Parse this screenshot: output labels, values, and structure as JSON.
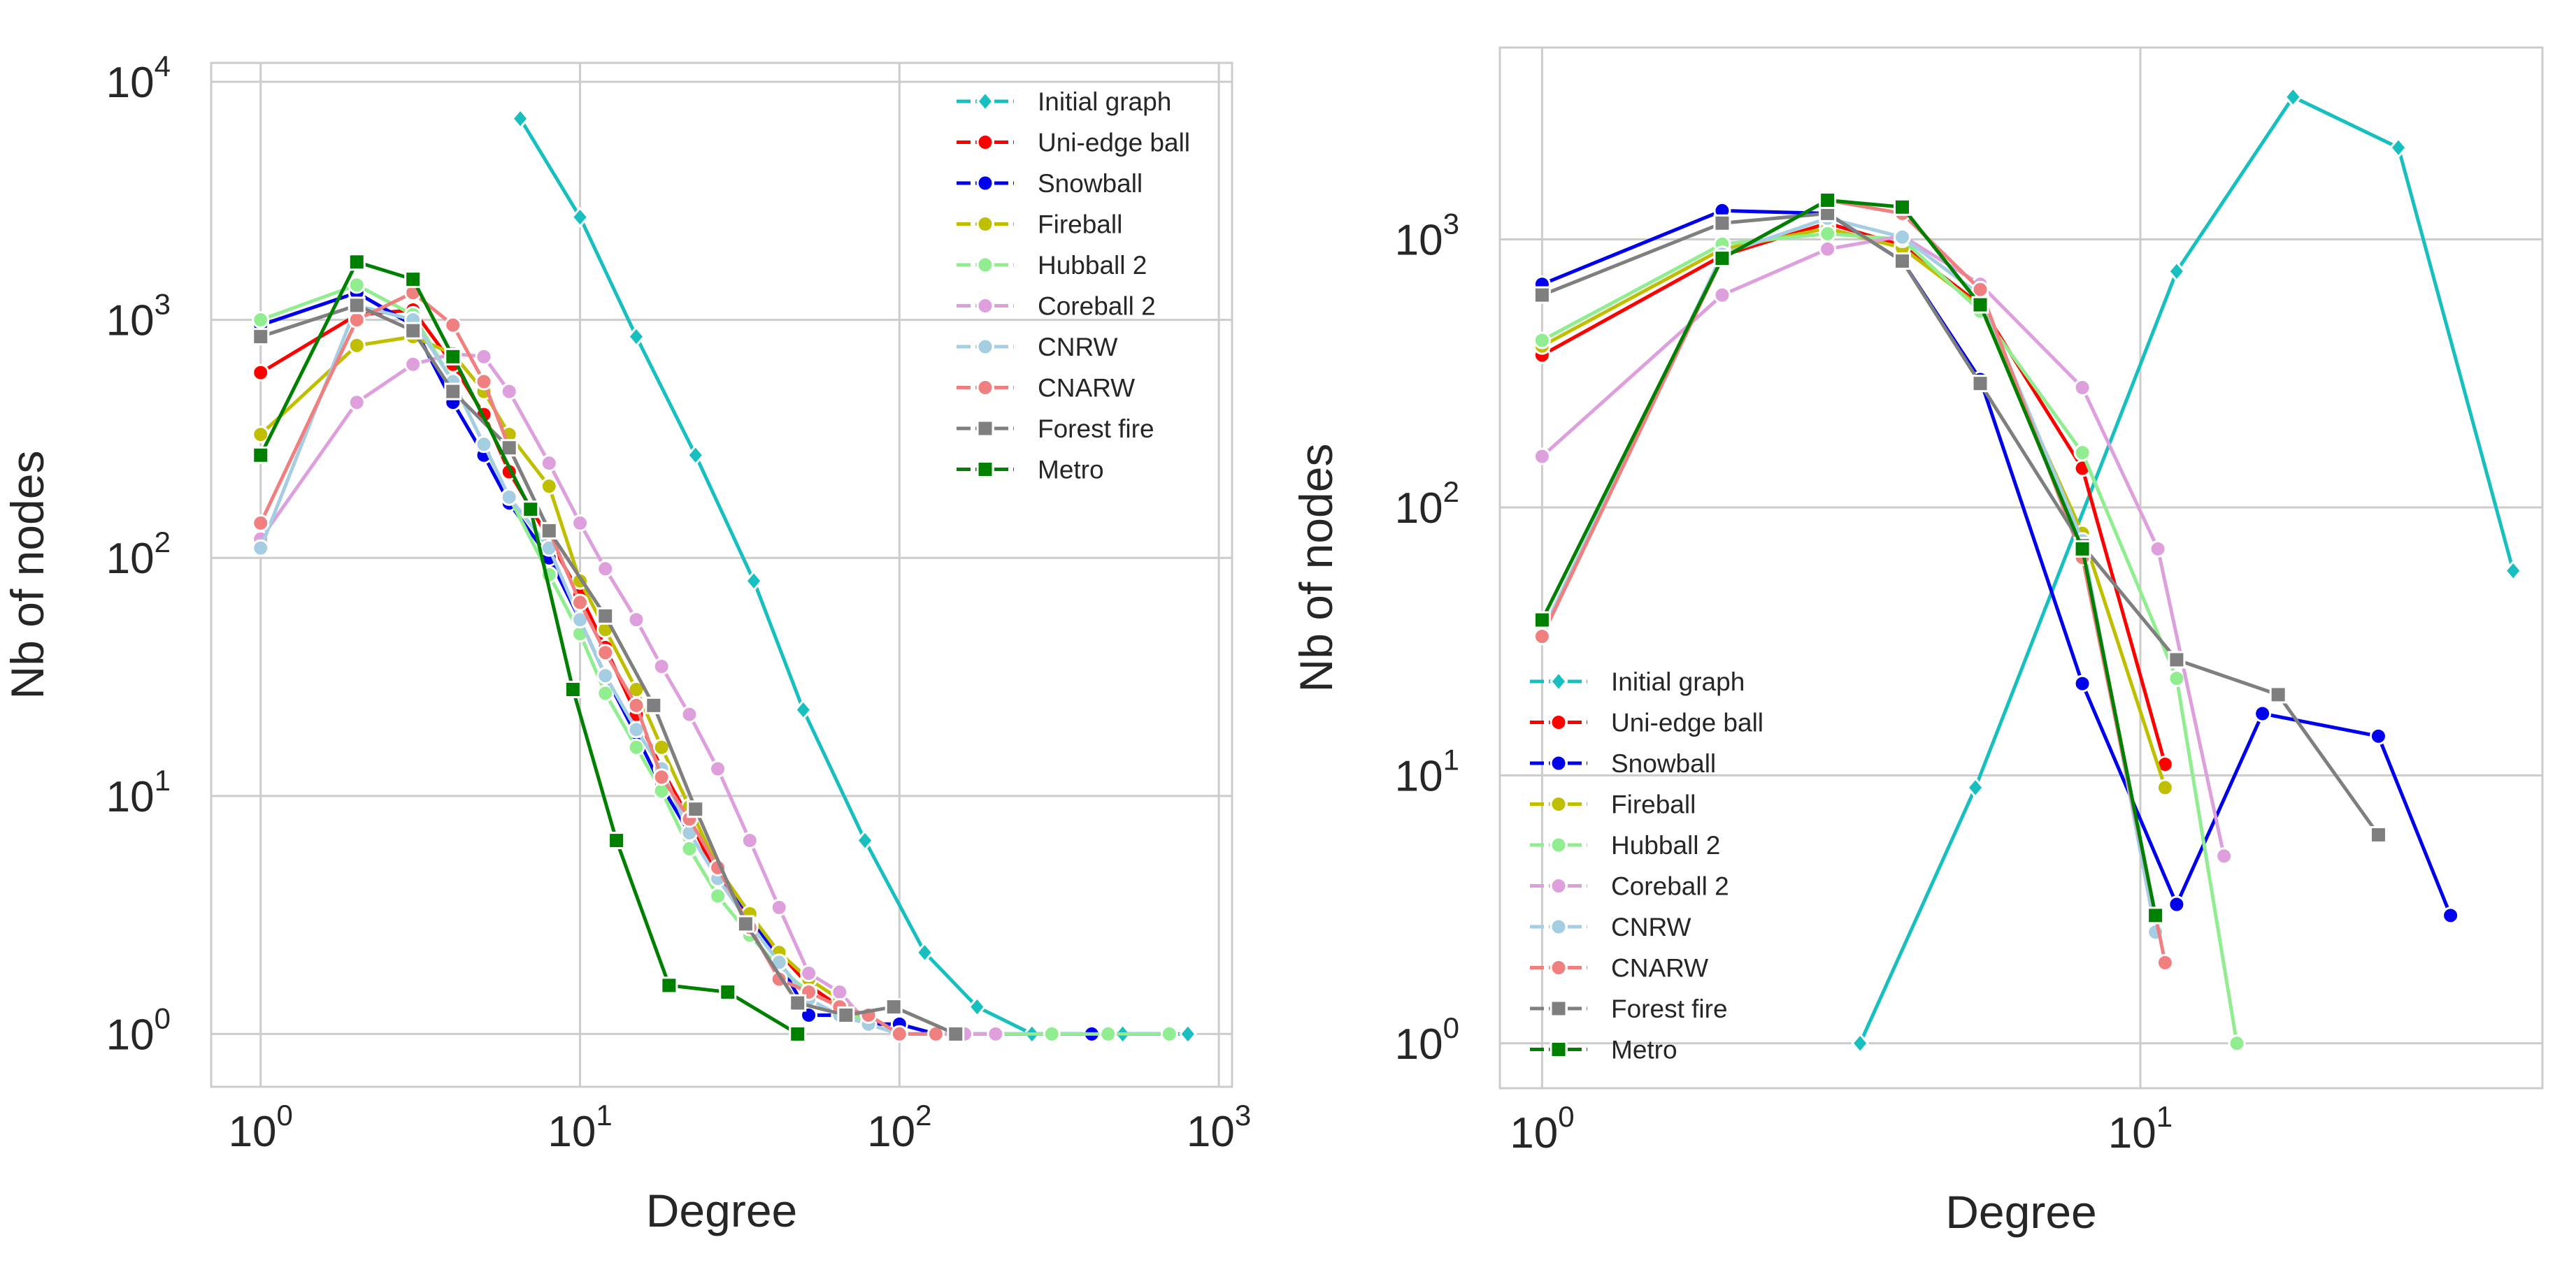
{
  "chart_data": [
    {
      "type": "line",
      "xscale": "log",
      "yscale": "log",
      "xlabel": "Degree",
      "ylabel": "Nb of nodes",
      "xlim": [
        0.7,
        1100
      ],
      "ylim": [
        0.6,
        12000
      ],
      "xticks": [
        {
          "base": "10",
          "exp": "0",
          "value": 1
        },
        {
          "base": "10",
          "exp": "1",
          "value": 10
        },
        {
          "base": "10",
          "exp": "2",
          "value": 100
        },
        {
          "base": "10",
          "exp": "3",
          "value": 1000
        }
      ],
      "yticks": [
        {
          "base": "10",
          "exp": "0",
          "value": 1
        },
        {
          "base": "10",
          "exp": "1",
          "value": 10
        },
        {
          "base": "10",
          "exp": "2",
          "value": 100
        },
        {
          "base": "10",
          "exp": "3",
          "value": 1000
        },
        {
          "base": "10",
          "exp": "4",
          "value": 10000
        }
      ],
      "grid": true,
      "legend_position": "top-right",
      "series": [
        {
          "name": "Initial graph",
          "color": "#17bfbf",
          "marker": "diamond",
          "x": [
            6.5,
            10,
            15,
            23,
            35,
            50,
            78,
            120,
            175,
            260,
            400,
            500,
            800
          ],
          "y": [
            7000,
            2700,
            850,
            270,
            80,
            23,
            6.5,
            2.2,
            1.3,
            1.0,
            1.0,
            1.0,
            1.0
          ]
        },
        {
          "name": "Uni-edge ball",
          "color": "#ff0000",
          "marker": "circle",
          "x": [
            1,
            2,
            3,
            4,
            5,
            6,
            8,
            10,
            12,
            15,
            18,
            22,
            27,
            34,
            42,
            52,
            65,
            80,
            100,
            130
          ],
          "y": [
            600,
            1050,
            1100,
            650,
            400,
            230,
            120,
            70,
            42,
            22,
            13,
            8,
            4.5,
            3.0,
            2.2,
            1.6,
            1.3,
            1.1,
            1.0,
            1.0
          ]
        },
        {
          "name": "Snowball",
          "color": "#0000ee",
          "marker": "circle",
          "x": [
            1,
            2,
            3,
            4,
            5,
            6,
            8,
            10,
            12,
            15,
            18,
            22,
            27,
            34,
            42,
            52,
            65,
            80,
            100,
            130,
            400,
            700
          ],
          "y": [
            950,
            1300,
            950,
            450,
            270,
            170,
            100,
            55,
            32,
            18,
            11,
            7,
            4.5,
            3.2,
            2.0,
            1.2,
            1.2,
            1.1,
            1.1,
            1.0,
            1.0,
            1.0
          ]
        },
        {
          "name": "Fireball",
          "color": "#bfbf00",
          "marker": "circle",
          "x": [
            1,
            2,
            3,
            4,
            5,
            6,
            8,
            10,
            12,
            15,
            18,
            22,
            27,
            34,
            42,
            52,
            65,
            80,
            100
          ],
          "y": [
            330,
            780,
            850,
            720,
            500,
            330,
            200,
            80,
            50,
            28,
            16,
            9,
            5,
            3.2,
            2.2,
            1.7,
            1.4,
            1.1,
            1.0
          ]
        },
        {
          "name": "Hubball 2",
          "color": "#90ee90",
          "marker": "circle",
          "x": [
            1,
            2,
            3,
            4,
            5,
            6,
            8,
            10,
            12,
            15,
            18,
            22,
            27,
            34,
            42,
            52,
            65,
            80,
            100,
            130,
            200,
            300,
            450,
            700
          ],
          "y": [
            1000,
            1400,
            1050,
            550,
            300,
            180,
            85,
            48,
            27,
            16,
            10.5,
            6,
            3.8,
            2.6,
            1.9,
            1.5,
            1.3,
            1.1,
            1.0,
            1.0,
            1.0,
            1.0,
            1.0,
            1.0
          ]
        },
        {
          "name": "Coreball 2",
          "color": "#dda0dd",
          "marker": "circle",
          "x": [
            1,
            2,
            3,
            4,
            5,
            6,
            8,
            10,
            12,
            15,
            18,
            22,
            27,
            34,
            42,
            52,
            65,
            80,
            100,
            130,
            160,
            200
          ],
          "y": [
            120,
            450,
            650,
            720,
            700,
            500,
            250,
            140,
            90,
            55,
            35,
            22,
            13,
            6.5,
            3.4,
            1.8,
            1.5,
            1.1,
            1.0,
            1.0,
            1.0,
            1.0
          ]
        },
        {
          "name": "CNRW",
          "color": "#a6cee3",
          "marker": "circle",
          "x": [
            1,
            2,
            3,
            4,
            5,
            6,
            8,
            10,
            12,
            15,
            18,
            22,
            27,
            34,
            42,
            52,
            65,
            80,
            100,
            130
          ],
          "y": [
            110,
            1150,
            1000,
            550,
            300,
            180,
            110,
            55,
            32,
            19,
            13,
            7,
            4.5,
            2.9,
            2.0,
            1.4,
            1.2,
            1.1,
            1.0,
            1.0
          ]
        },
        {
          "name": "CNARW",
          "color": "#f08080",
          "marker": "circle",
          "x": [
            1,
            2,
            3,
            4,
            5,
            6,
            8,
            10,
            12,
            15,
            18,
            22,
            27,
            34,
            42,
            52,
            65,
            80,
            100,
            130
          ],
          "y": [
            140,
            1000,
            1300,
            950,
            550,
            290,
            130,
            65,
            40,
            24,
            12,
            8,
            5.0,
            2.8,
            1.7,
            1.5,
            1.3,
            1.2,
            1.0,
            1.0
          ]
        },
        {
          "name": "Forest fire",
          "color": "#7f7f7f",
          "marker": "square",
          "x": [
            1,
            2,
            3,
            4,
            6,
            8,
            12,
            17,
            23,
            33,
            48,
            68,
            96,
            150
          ],
          "y": [
            850,
            1150,
            900,
            500,
            290,
            130,
            57,
            24,
            8.8,
            2.9,
            1.35,
            1.2,
            1.3,
            1.0
          ]
        },
        {
          "name": "Metro",
          "color": "#008000",
          "marker": "square",
          "x": [
            1,
            2,
            3,
            4,
            7,
            9.5,
            13,
            19,
            29,
            48
          ],
          "y": [
            270,
            1750,
            1480,
            700,
            160,
            28,
            6.5,
            1.6,
            1.5,
            1.0
          ]
        }
      ]
    },
    {
      "type": "line",
      "xscale": "log",
      "yscale": "log",
      "xlabel": "Degree",
      "ylabel": "Nb of nodes",
      "xlim": [
        0.85,
        47
      ],
      "ylim": [
        0.68,
        5200
      ],
      "xticks": [
        {
          "base": "10",
          "exp": "0",
          "value": 1
        },
        {
          "base": "10",
          "exp": "1",
          "value": 10
        }
      ],
      "yticks": [
        {
          "base": "10",
          "exp": "0",
          "value": 1
        },
        {
          "base": "10",
          "exp": "1",
          "value": 10
        },
        {
          "base": "10",
          "exp": "2",
          "value": 100
        },
        {
          "base": "10",
          "exp": "3",
          "value": 1000
        }
      ],
      "grid": true,
      "legend_position": "lower-left",
      "series": [
        {
          "name": "Initial graph",
          "color": "#17bfbf",
          "marker": "diamond",
          "x": [
            3.4,
            5.3,
            11.5,
            18,
            27,
            42
          ],
          "y": [
            1.0,
            9.0,
            760,
            3400,
            2200,
            58
          ]
        },
        {
          "name": "Uni-edge ball",
          "color": "#ff0000",
          "marker": "circle",
          "x": [
            1,
            2,
            3,
            4,
            5.4,
            8,
            11
          ],
          "y": [
            370,
            870,
            1150,
            950,
            570,
            140,
            11
          ]
        },
        {
          "name": "Snowball",
          "color": "#0000ee",
          "marker": "circle",
          "x": [
            1,
            2,
            3,
            4,
            5.4,
            8,
            11.5,
            16,
            25,
            33
          ],
          "y": [
            680,
            1280,
            1250,
            830,
            300,
            22,
            3.3,
            17,
            14,
            3.0
          ]
        },
        {
          "name": "Fireball",
          "color": "#bfbf00",
          "marker": "circle",
          "x": [
            1,
            2,
            3,
            4,
            5.4,
            8,
            11
          ],
          "y": [
            400,
            920,
            1100,
            930,
            560,
            80,
            9.0
          ]
        },
        {
          "name": "Hubball 2",
          "color": "#90ee90",
          "marker": "circle",
          "x": [
            1,
            2,
            3,
            4,
            5.4,
            8,
            11.5,
            14.5
          ],
          "y": [
            420,
            960,
            1050,
            1000,
            540,
            160,
            23,
            1.0
          ]
        },
        {
          "name": "Coreball 2",
          "color": "#dda0dd",
          "marker": "circle",
          "x": [
            1,
            2,
            3,
            4,
            5.4,
            8,
            10.7,
            13.8
          ],
          "y": [
            155,
            620,
            920,
            1030,
            680,
            280,
            70,
            5.0
          ]
        },
        {
          "name": "CNRW",
          "color": "#a6cee3",
          "marker": "circle",
          "x": [
            1,
            2,
            3,
            4,
            5.4,
            8,
            10.6
          ],
          "y": [
            34,
            880,
            1200,
            1020,
            620,
            75,
            2.6
          ]
        },
        {
          "name": "CNARW",
          "color": "#f08080",
          "marker": "circle",
          "x": [
            1,
            2,
            3,
            4,
            5.4,
            8,
            11
          ],
          "y": [
            33,
            850,
            1400,
            1250,
            650,
            65,
            2.0
          ]
        },
        {
          "name": "Forest fire",
          "color": "#7f7f7f",
          "marker": "square",
          "x": [
            1,
            2,
            3,
            4,
            5.4,
            8,
            11.5,
            17,
            25
          ],
          "y": [
            620,
            1150,
            1250,
            830,
            290,
            72,
            27,
            20,
            6.0
          ]
        },
        {
          "name": "Metro",
          "color": "#008000",
          "marker": "square",
          "x": [
            1,
            2,
            3,
            4,
            5.4,
            8,
            10.6
          ],
          "y": [
            38,
            850,
            1400,
            1320,
            570,
            70,
            3.0
          ]
        }
      ]
    }
  ]
}
